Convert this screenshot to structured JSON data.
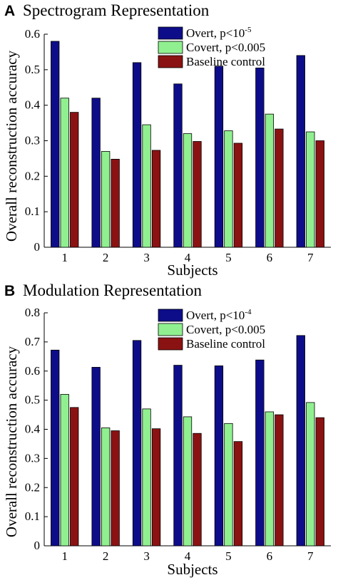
{
  "colors": {
    "overt": "#0d0d8a",
    "covert": "#90f090",
    "baseline": "#8b1212",
    "edge": "#000000"
  },
  "ylabel_shared": "Overall reconstruction accuracy",
  "chart_data": [
    {
      "type": "bar",
      "panel": "A",
      "title": "Spectrogram Representation",
      "xlabel": "Subjects",
      "ylabel": "Overall reconstruction accuracy",
      "ylim": [
        0,
        0.6
      ],
      "yticks": [
        "0",
        "0.1",
        "0.2",
        "0.3",
        "0.4",
        "0.5",
        "0.6"
      ],
      "categories": [
        "1",
        "2",
        "3",
        "4",
        "5",
        "6",
        "7"
      ],
      "legend_position": "top-right",
      "series": [
        {
          "name": "Overt, p<10",
          "name_sup": "-5",
          "color": "#0d0d8a",
          "values": [
            0.58,
            0.42,
            0.52,
            0.46,
            0.51,
            0.505,
            0.54
          ]
        },
        {
          "name": "Covert, p<0.005",
          "name_sup": "",
          "color": "#90f090",
          "values": [
            0.42,
            0.27,
            0.345,
            0.32,
            0.328,
            0.375,
            0.325
          ]
        },
        {
          "name": "Baseline control",
          "name_sup": "",
          "color": "#8b1212",
          "values": [
            0.38,
            0.248,
            0.273,
            0.298,
            0.293,
            0.333,
            0.3
          ]
        }
      ]
    },
    {
      "type": "bar",
      "panel": "B",
      "title": "Modulation Representation",
      "xlabel": "Subjects",
      "ylabel": "Overall reconstruction accuracy",
      "ylim": [
        0,
        0.8
      ],
      "yticks": [
        "0",
        "0.1",
        "0.2",
        "0.3",
        "0.4",
        "0.5",
        "0.6",
        "0.7",
        "0.8"
      ],
      "categories": [
        "1",
        "2",
        "3",
        "4",
        "5",
        "6",
        "7"
      ],
      "legend_position": "top-right",
      "series": [
        {
          "name": "Overt, p<10",
          "name_sup": "-4",
          "color": "#0d0d8a",
          "values": [
            0.672,
            0.613,
            0.705,
            0.62,
            0.618,
            0.638,
            0.722
          ]
        },
        {
          "name": "Covert, p<0.005",
          "name_sup": "",
          "color": "#90f090",
          "values": [
            0.52,
            0.405,
            0.47,
            0.443,
            0.42,
            0.46,
            0.492
          ]
        },
        {
          "name": "Baseline control",
          "name_sup": "",
          "color": "#8b1212",
          "values": [
            0.475,
            0.395,
            0.402,
            0.386,
            0.358,
            0.45,
            0.44
          ]
        }
      ]
    }
  ]
}
